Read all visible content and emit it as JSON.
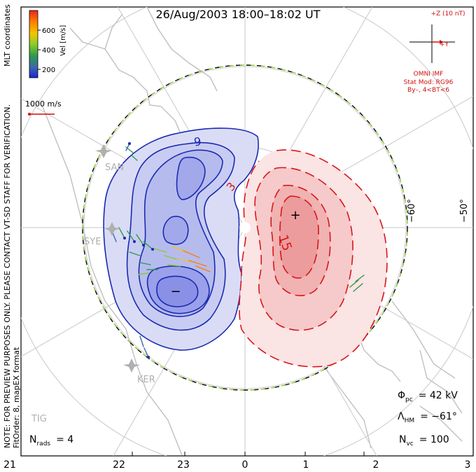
{
  "title": "26/Aug/2003 18:00–18:02 UT",
  "side_note_1": "NOTE: FOR PREVIEW PURPOSES ONLY. PLEASE CONTACT VT-SD STAFF FOR VERIFICATION.",
  "side_note_2": "FitOrder: 8, mapEX format",
  "coord_system": "MLT coordinates",
  "colorbar": {
    "label": "Vel [m/s]",
    "ticks": [
      "600",
      "400",
      "200"
    ],
    "colors": [
      "#e8261e",
      "#ff7f00",
      "#f5c400",
      "#8ccc2a",
      "#2e9a4a",
      "#3a6aa8",
      "#1e22e0"
    ]
  },
  "velocity_scale": "1000 m/s",
  "imf": {
    "z_label": "+Z (10 nT)",
    "y_label": "+Y",
    "source": "OMNI IMF",
    "stat_mod": "Stat Mod: RG96",
    "condition": "By–, 4<BT<6",
    "color": "#d01010"
  },
  "radars": [
    "SAN",
    "SYE",
    "KER",
    "TIG"
  ],
  "lat_labels": [
    "−60°",
    "−50°"
  ],
  "contour_labels": [
    "−9",
    "3",
    "15"
  ],
  "extrema": {
    "min": "−",
    "max": "+"
  },
  "stats": {
    "phi_pc_sym": "Φ",
    "phi_pc_sub": "pc",
    "phi_pc_value": "= 42 kV",
    "lambda_hm_sym": "Λ",
    "lambda_hm_sub": "HM",
    "lambda_hm_value": "= −61°",
    "n_vc_sym": "N",
    "n_vc_sub": "vc",
    "n_vc_value": "= 100",
    "n_rads_sym": "N",
    "n_rads_sub": "rads",
    "n_rads_value": "= 4"
  },
  "mlt_ticks": [
    "21",
    "22",
    "23",
    "0",
    "1",
    "2",
    "3"
  ],
  "colors": {
    "negative_line": "#1a2bb0",
    "positive_line": "#d8161a",
    "negative_fill": "#9aa0ea",
    "positive_fill": "#f2a0a0",
    "coast": "#c0c0c0",
    "grid": "#c8c8c8",
    "hmb_dash": "#8fd030"
  }
}
